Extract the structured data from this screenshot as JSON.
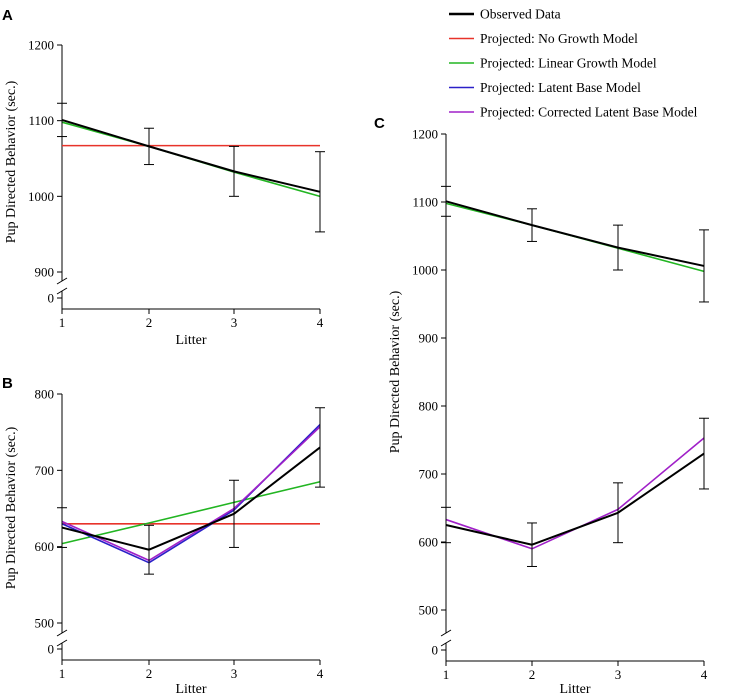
{
  "legend": [
    {
      "key": "observed",
      "label": "Observed Data",
      "color": "#000000"
    },
    {
      "key": "no_growth",
      "label": "Projected: No Growth Model",
      "color": "#e8332a"
    },
    {
      "key": "linear",
      "label": "Projected: Linear Growth Model",
      "color": "#22b522"
    },
    {
      "key": "latent",
      "label": "Projected: Latent Base Model",
      "color": "#2b20c8"
    },
    {
      "key": "corrected",
      "label": "Projected: Corrected Latent Base Model",
      "color": "#a020c8"
    }
  ],
  "chart_data": [
    {
      "panel": "A",
      "type": "line",
      "xlabel": "Litter",
      "ylabel": "Pup Directed Behavior (sec.)",
      "x": [
        1,
        2,
        3,
        4
      ],
      "xticks": [
        "1",
        "2",
        "3",
        "4"
      ],
      "ylim": [
        900,
        1200
      ],
      "yticks": [
        "900",
        "1000",
        "1100",
        "1200"
      ],
      "zero_tick": "0",
      "axis_break": true,
      "series": [
        {
          "key": "no_growth",
          "values": [
            1067,
            1067,
            1067,
            1067
          ]
        },
        {
          "key": "linear",
          "values": [
            1098,
            1066,
            1032,
            1000
          ]
        },
        {
          "key": "observed",
          "values": [
            1101,
            1066,
            1033,
            1006
          ],
          "error": [
            22,
            24,
            33,
            53
          ]
        }
      ]
    },
    {
      "panel": "B",
      "type": "line",
      "xlabel": "Litter",
      "ylabel": "Pup Directed Behavior (sec.)",
      "x": [
        1,
        2,
        3,
        4
      ],
      "xticks": [
        "1",
        "2",
        "3",
        "4"
      ],
      "ylim": [
        500,
        800
      ],
      "yticks": [
        "500",
        "600",
        "700",
        "800"
      ],
      "zero_tick": "0",
      "axis_break": true,
      "series": [
        {
          "key": "no_growth",
          "values": [
            630,
            630,
            630,
            630
          ]
        },
        {
          "key": "linear",
          "values": [
            604,
            631,
            658,
            685
          ]
        },
        {
          "key": "latent",
          "values": [
            630,
            579,
            648,
            760
          ]
        },
        {
          "key": "corrected",
          "values": [
            633,
            582,
            650,
            757
          ]
        },
        {
          "key": "observed",
          "values": [
            625,
            596,
            643,
            730
          ],
          "error": [
            26,
            32,
            44,
            52
          ]
        }
      ]
    },
    {
      "panel": "C",
      "type": "line",
      "xlabel": "Litter",
      "ylabel": "Pup Directed Behavior (sec.)",
      "x": [
        1,
        2,
        3,
        4
      ],
      "xticks": [
        "1",
        "2",
        "3",
        "4"
      ],
      "ylim": [
        500,
        1200
      ],
      "yticks": [
        "500",
        "600",
        "700",
        "800",
        "900",
        "1000",
        "1100",
        "1200"
      ],
      "zero_tick": "0",
      "axis_break": true,
      "series": [
        {
          "key": "linear",
          "values": [
            1098,
            1066,
            1032,
            998
          ]
        },
        {
          "key": "observed",
          "values": [
            1101,
            1066,
            1033,
            1006
          ],
          "error": [
            22,
            24,
            33,
            53
          ]
        },
        {
          "key": "corrected",
          "values": [
            633,
            590,
            648,
            753
          ]
        },
        {
          "key": "observed",
          "values": [
            625,
            596,
            643,
            730
          ],
          "error": [
            26,
            32,
            44,
            52
          ]
        }
      ]
    }
  ]
}
